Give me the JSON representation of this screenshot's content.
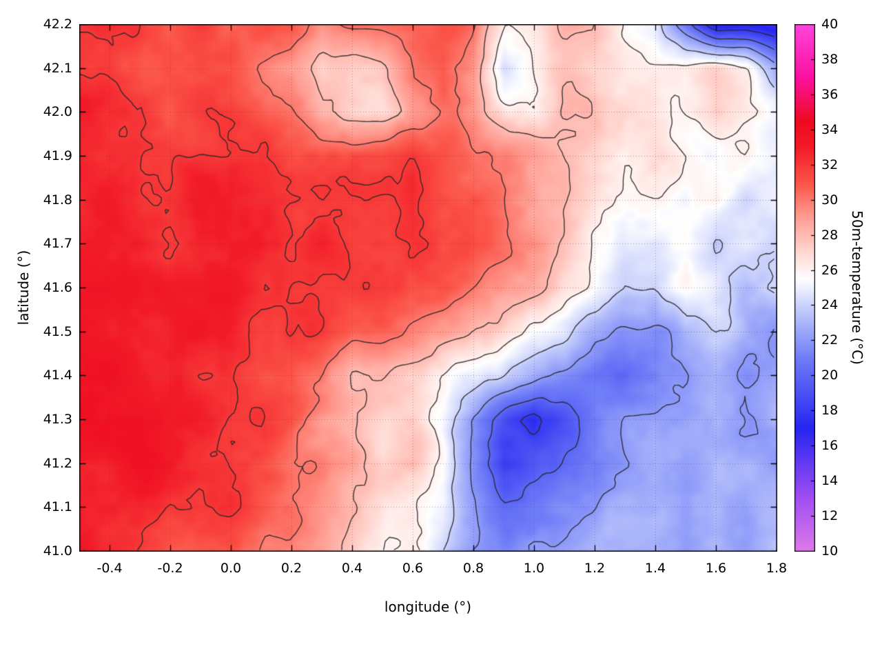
{
  "figure": {
    "xlabel": "longitude (°)",
    "ylabel": "latitude (°)",
    "colorbar_label": "50m-temperature (°C)",
    "background": "#ffffff"
  },
  "chart_data": {
    "type": "heatmap",
    "title": "",
    "xlabel": "longitude (°)",
    "ylabel": "latitude (°)",
    "x_range": [
      -0.5,
      1.8
    ],
    "y_range": [
      41.0,
      42.2
    ],
    "x_ticks": [
      -0.4,
      -0.2,
      0.0,
      0.2,
      0.4,
      0.6,
      0.8,
      1.0,
      1.2,
      1.4,
      1.6,
      1.8
    ],
    "x_tick_labels": [
      "-0.4",
      "-0.2",
      "0.0",
      "0.2",
      "0.4",
      "0.6",
      "0.8",
      "1.0",
      "1.2",
      "1.4",
      "1.6",
      "1.8"
    ],
    "y_ticks": [
      41.0,
      41.1,
      41.2,
      41.3,
      41.4,
      41.5,
      41.6,
      41.7,
      41.8,
      41.9,
      42.0,
      42.1,
      42.2
    ],
    "y_tick_labels": [
      "41.0",
      "41.1",
      "41.2",
      "41.3",
      "41.4",
      "41.5",
      "41.6",
      "41.7",
      "41.8",
      "41.9",
      "42.0",
      "42.1",
      "42.2"
    ],
    "grid_on": true,
    "colorbar": {
      "label": "50m-temperature (°C)",
      "range": [
        10,
        40
      ],
      "ticks": [
        10,
        12,
        14,
        16,
        18,
        20,
        22,
        24,
        26,
        28,
        30,
        32,
        34,
        36,
        38,
        40
      ],
      "tick_labels": [
        "10",
        "12",
        "14",
        "16",
        "18",
        "20",
        "22",
        "24",
        "26",
        "28",
        "30",
        "32",
        "34",
        "36",
        "38",
        "40"
      ]
    },
    "palette": [
      [
        10,
        "#de79e8"
      ],
      [
        13,
        "#a14ff2"
      ],
      [
        17,
        "#2525f0"
      ],
      [
        21,
        "#6f7df7"
      ],
      [
        23.5,
        "#b9c3fb"
      ],
      [
        25.5,
        "#ffffff"
      ],
      [
        27,
        "#ffd8d2"
      ],
      [
        29,
        "#ff9d92"
      ],
      [
        31,
        "#fb5448"
      ],
      [
        33,
        "#f21b28"
      ],
      [
        34.5,
        "#ee0a20"
      ],
      [
        37,
        "#fb12a0"
      ],
      [
        40,
        "#ff44dd"
      ]
    ],
    "contours": {
      "levels": [
        16,
        18,
        20,
        22,
        24,
        26,
        28,
        30,
        32
      ],
      "color": "#262626"
    },
    "grid": {
      "lon_start": -0.5,
      "lon_step": 0.1,
      "lat_start": 42.2,
      "lat_step": -0.1,
      "ncols": 24,
      "nrows": 13,
      "values": [
        [
          32,
          32,
          32,
          31,
          32,
          31,
          31,
          31,
          29,
          30,
          30,
          31,
          31,
          30,
          26,
          26,
          28,
          28,
          26,
          25,
          21,
          17,
          17,
          16
        ],
        [
          32,
          32,
          31,
          31,
          31,
          31,
          30,
          29,
          27,
          27,
          28,
          30,
          31,
          29,
          24,
          26,
          28,
          27,
          26,
          26,
          26,
          27,
          26,
          22
        ],
        [
          33,
          32,
          32,
          31,
          32,
          32,
          31,
          30,
          28,
          27,
          27,
          29,
          30,
          29,
          27,
          26,
          28,
          28,
          27,
          26,
          26,
          27,
          26,
          25
        ],
        [
          33,
          32,
          32,
          32,
          32,
          32,
          32,
          31,
          31,
          31,
          31,
          32,
          31,
          30,
          30,
          29,
          28,
          27,
          26,
          27,
          26,
          25,
          26,
          25
        ],
        [
          33,
          33,
          32,
          32,
          33,
          33,
          32,
          32,
          32,
          32,
          32,
          32,
          31,
          31,
          30,
          29,
          28,
          27,
          26,
          26,
          25,
          26,
          24,
          25
        ],
        [
          33,
          33,
          33,
          32,
          33,
          33,
          33,
          32,
          33,
          32,
          32,
          32,
          31,
          31,
          30,
          29,
          28,
          26,
          25,
          25,
          26,
          24,
          25,
          24
        ],
        [
          33,
          33,
          33,
          33,
          33,
          33,
          32,
          32,
          32,
          32,
          32,
          31,
          31,
          30,
          29,
          28,
          27,
          26,
          24,
          24,
          26,
          25,
          23,
          24
        ],
        [
          34,
          33,
          33,
          33,
          33,
          33,
          32,
          32,
          32,
          31,
          31,
          30,
          29,
          28,
          27,
          26,
          25,
          23,
          22,
          21,
          23,
          24,
          23,
          22
        ],
        [
          34,
          34,
          33,
          33,
          32,
          32,
          31,
          31,
          30,
          28,
          28,
          27,
          26,
          25,
          24,
          23,
          22,
          21,
          20,
          21,
          22,
          23,
          22,
          23
        ],
        [
          34,
          34,
          34,
          33,
          33,
          32,
          32,
          31,
          29,
          28,
          27,
          27,
          25,
          22,
          19,
          17,
          19,
          21,
          22,
          22,
          22,
          23,
          22,
          23
        ],
        [
          33,
          33,
          34,
          33,
          32,
          32,
          31,
          30,
          30,
          29,
          27,
          28,
          26,
          22,
          18,
          19,
          20,
          21,
          22,
          23,
          22,
          23,
          23,
          22
        ],
        [
          33,
          33,
          33,
          32,
          32,
          32,
          31,
          30,
          29,
          28,
          27,
          26,
          25,
          22,
          20,
          21,
          22,
          22,
          23,
          23,
          22,
          23,
          22,
          23
        ],
        [
          33,
          32,
          32,
          31,
          31,
          31,
          30,
          30,
          29,
          27,
          26,
          26,
          24,
          22,
          21,
          22,
          22,
          23,
          23,
          23,
          22,
          23,
          22,
          23
        ]
      ]
    },
    "texture": {
      "amplitude": 0.7,
      "seed": 11
    }
  }
}
